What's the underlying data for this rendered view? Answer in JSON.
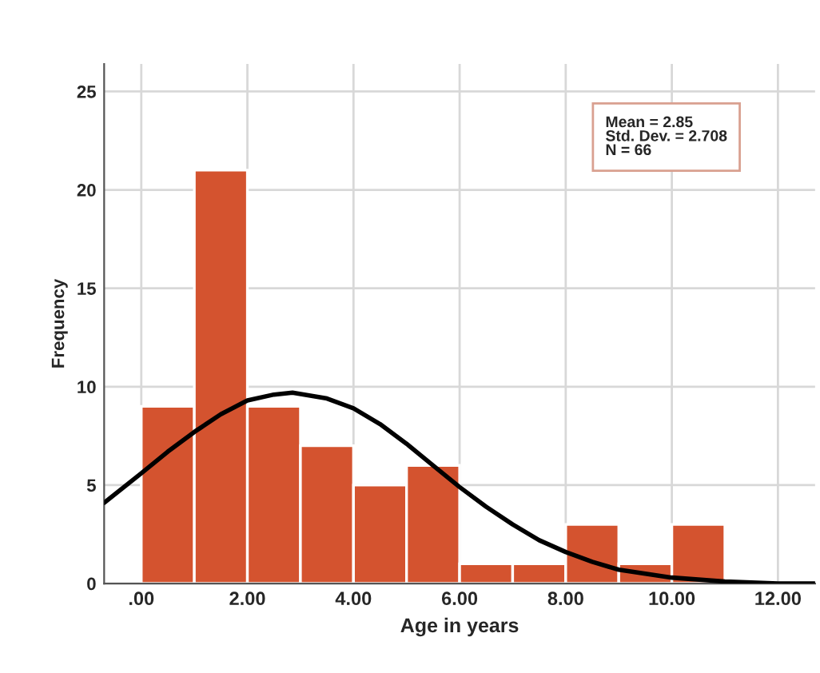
{
  "chart_data": {
    "type": "histogram",
    "xlabel": "Age in years",
    "ylabel": "Frequency",
    "bins": [
      0,
      1,
      2,
      3,
      4,
      5,
      6,
      7,
      8,
      9,
      10,
      11
    ],
    "series": [
      {
        "color": "#d4532f",
        "values": [
          9,
          21,
          9,
          7,
          5,
          6,
          1,
          1,
          3,
          1,
          3
        ]
      },
      {
        "type": "line",
        "color": "#000000",
        "x": [
          -0.7,
          0,
          0.5,
          1,
          1.5,
          2,
          2.5,
          2.85,
          3.5,
          4,
          4.5,
          5,
          5.5,
          6,
          6.5,
          7,
          7.5,
          8,
          8.5,
          9,
          9.5,
          10,
          11,
          12,
          12.7
        ],
        "values": [
          4.1,
          5.6,
          6.7,
          7.7,
          8.6,
          9.3,
          9.6,
          9.7,
          9.4,
          8.9,
          8.1,
          7.1,
          6.0,
          4.9,
          3.9,
          3.0,
          2.2,
          1.6,
          1.1,
          0.7,
          0.5,
          0.3,
          0.1,
          0.0,
          0.0
        ]
      }
    ],
    "xlim": [
      -0.7,
      12.7
    ],
    "ylim": [
      0,
      26.4
    ],
    "xticks": [
      {
        "value": 0,
        "label": ".00"
      },
      {
        "value": 2,
        "label": "2.00"
      },
      {
        "value": 4,
        "label": "4.00"
      },
      {
        "value": 6,
        "label": "6.00"
      },
      {
        "value": 8,
        "label": "8.00"
      },
      {
        "value": 10,
        "label": "10.00"
      },
      {
        "value": 12,
        "label": "12.00"
      }
    ],
    "yticks": [
      0,
      5,
      10,
      15,
      20,
      25
    ],
    "annotations": [
      "Mean = 2.85",
      "Std. Dev. = 2.708",
      "N = 66"
    ],
    "grid": true,
    "marker": "none",
    "line_style": "solid"
  }
}
